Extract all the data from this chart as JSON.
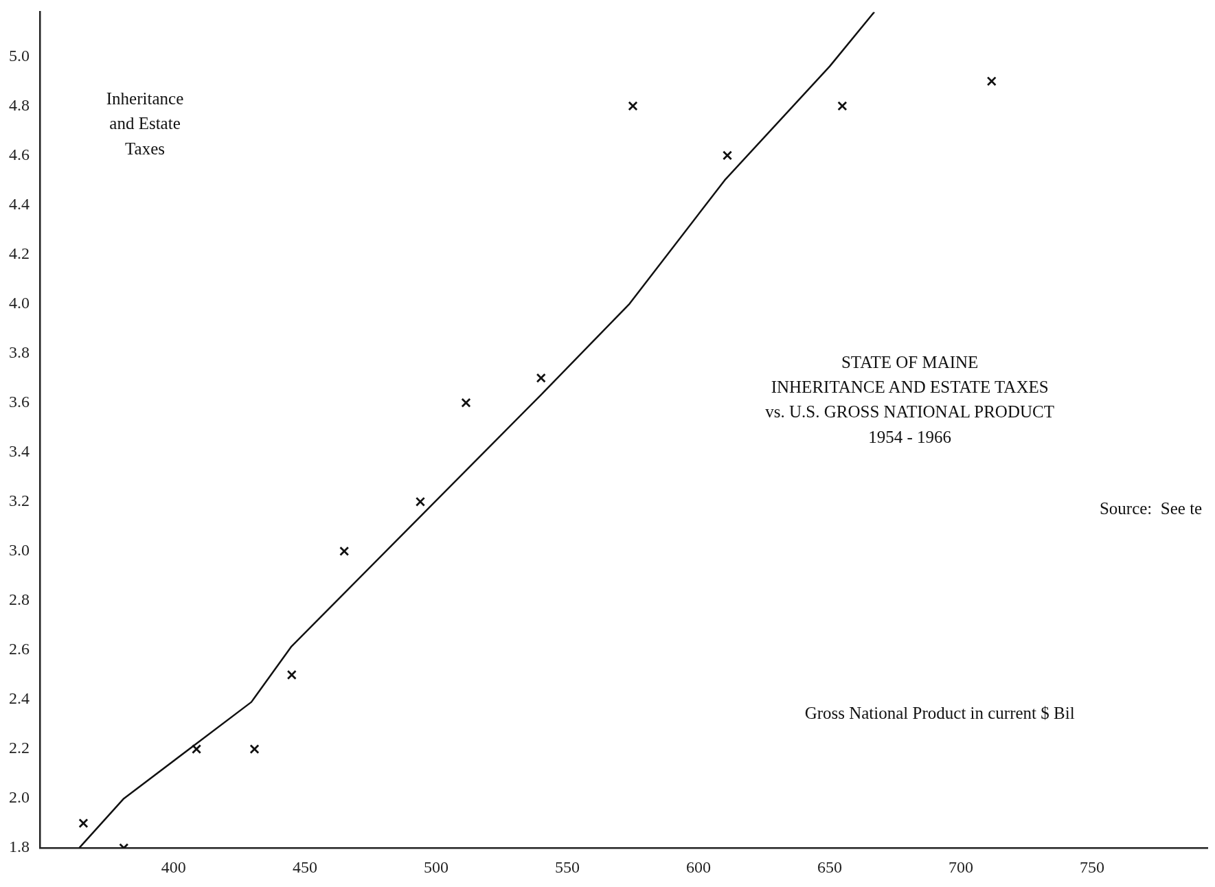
{
  "chart_data": {
    "type": "scatter",
    "title": "STATE OF MAINE\nINHERITANCE AND ESTATE TAXES\nvs. U.S. GROSS NATIONAL PRODUCT\n1954 - 1966",
    "xlabel": "Gross National Product in current $ Bil",
    "ylabel": "Inheritance\nand Estate\nTaxes",
    "annotations": [
      "Source:  See te"
    ],
    "series": [
      {
        "type": "scatter",
        "color": "#111111",
        "marker": "cross",
        "x": [
          365.6,
          381,
          408.7,
          430.8,
          445,
          465,
          494,
          511.4,
          540,
          575,
          611,
          654.8,
          711.7
        ],
        "values": [
          1.9,
          1.8,
          2.2,
          2.2,
          2.5,
          3.0,
          3.2,
          3.6,
          3.7,
          4.8,
          4.6,
          4.8,
          4.9
        ]
      },
      {
        "type": "line",
        "color": "#111111",
        "marker": "none",
        "line_style": "solid",
        "x": [
          364,
          381,
          429.6,
          444.9,
          539.8,
          573.7,
          610,
          650,
          667
        ],
        "values": [
          1.8,
          2.0,
          2.39,
          2.615,
          3.63,
          4.0,
          4.5,
          4.96,
          5.18
        ]
      }
    ],
    "xlim": [
      349,
      794
    ],
    "xticks": [
      400,
      450,
      500,
      550,
      600,
      650,
      700,
      750
    ],
    "ylim": [
      1.8,
      5.18
    ],
    "yticks": [
      {
        "value": 1.8,
        "label": "1.8"
      },
      {
        "value": 2,
        "label": "2.0"
      },
      {
        "value": 2.2,
        "label": "2.2"
      },
      {
        "value": 2.4,
        "label": "2.4"
      },
      {
        "value": 2.6,
        "label": "2.6"
      },
      {
        "value": 2.8,
        "label": "2.8"
      },
      {
        "value": 3,
        "label": "3.0"
      },
      {
        "value": 3.2,
        "label": "3.2"
      },
      {
        "value": 3.4,
        "label": "3.4"
      },
      {
        "value": 3.6,
        "label": "3.6"
      },
      {
        "value": 3.8,
        "label": "3.8"
      },
      {
        "value": 4,
        "label": "4.0"
      },
      {
        "value": 4.2,
        "label": "4.2"
      },
      {
        "value": 4.4,
        "label": "4.4"
      },
      {
        "value": 4.6,
        "label": "4.6"
      },
      {
        "value": 4.8,
        "label": "4.8"
      },
      {
        "value": 5,
        "label": "5.0"
      }
    ],
    "grid": false,
    "legend": false
  }
}
